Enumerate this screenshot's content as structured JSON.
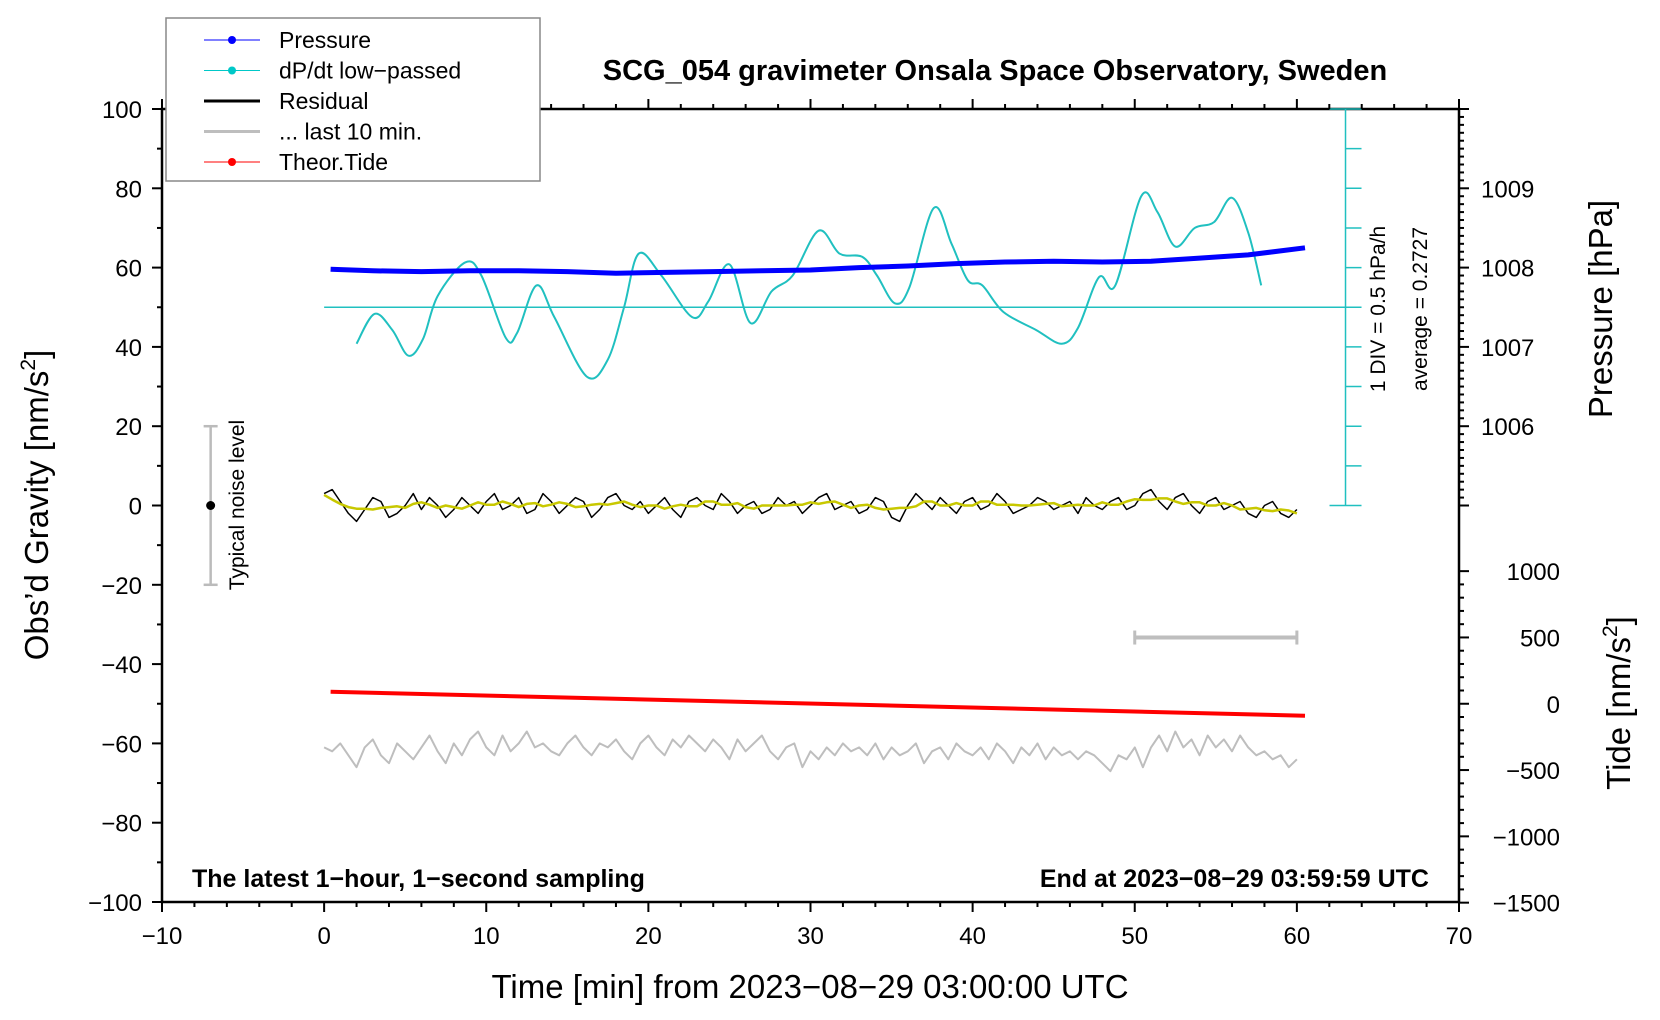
{
  "chart_data": {
    "type": "line",
    "title": "SCG_054 gravimeter Onsala Space Observatory, Sweden",
    "xlabel": "Time [min] from 2023−08−29 03:00:00 UTC",
    "ylabel": "Obs’d Gravity [nm/s²]",
    "ylabel_parts": {
      "main": "Obs’d Gravity [nm/s",
      "sup": "2",
      "end": "]"
    },
    "xlim": [
      -10,
      70
    ],
    "ylim": [
      -100,
      100
    ],
    "xticks": [
      -10,
      0,
      10,
      20,
      30,
      40,
      50,
      60,
      70
    ],
    "xtick_labels": [
      "−10",
      "0",
      "10",
      "20",
      "30",
      "40",
      "50",
      "60",
      "70"
    ],
    "yticks": [
      100,
      80,
      60,
      40,
      20,
      0,
      -20,
      -40,
      -60,
      -80,
      -100
    ],
    "ytick_labels": [
      "100",
      "80",
      "60",
      "40",
      "20",
      "0",
      "−20",
      "−40",
      "−60",
      "−80",
      "−100"
    ],
    "pressure_axis": {
      "label": "Pressure [hPa]",
      "ticks": [
        1009,
        1008,
        1007,
        1006
      ],
      "tick_labels": [
        "1009",
        "1008",
        "1007",
        "1006"
      ]
    },
    "tide_axis": {
      "label_parts": {
        "main": "Tide [nm/s",
        "sup": "2",
        "end": "]"
      },
      "ticks": [
        1000,
        500,
        0,
        -500,
        -1000,
        -1500
      ],
      "tick_labels": [
        "1000",
        "500",
        "0",
        "−500",
        "−1000",
        "−1500"
      ]
    },
    "dpdt_scale": {
      "div_label": "1 DIV = 0.5 hPa/h",
      "average_label": "average = 0.2727",
      "average": 0.2727,
      "div": 0.5
    },
    "annotations": {
      "left_bottom": "The latest 1−hour, 1−second sampling",
      "right_bottom": "End at 2023−08−29 03:59:59 UTC",
      "noise": "Typical noise level",
      "noise_range": [
        -20,
        20
      ]
    },
    "legend": {
      "position": "top-left",
      "entries": [
        {
          "label": "Pressure",
          "color": "#0000ff",
          "marker": true
        },
        {
          "label": "dP/dt low−passed",
          "color": "#00c8c8",
          "marker": true
        },
        {
          "label": "Residual",
          "color": "#000000",
          "marker": false
        },
        {
          "label": "... last 10 min.",
          "color": "#bebebe",
          "marker": false
        },
        {
          "label": "Theor.Tide",
          "color": "#ff0000",
          "marker": true
        }
      ]
    },
    "colors": {
      "pressure": "#0000ff",
      "dpdt": "#20c0c0",
      "residual": "#000000",
      "smoothed": "#c8c800",
      "last10": "#bebebe",
      "tide": "#ff0000"
    },
    "last10_range_min": [
      50,
      60
    ],
    "series": {
      "pressure_hPa": {
        "x": [
          0.4,
          3,
          6,
          9,
          12,
          15,
          18,
          21,
          24,
          27,
          30,
          33,
          36,
          39,
          42,
          45,
          48,
          51,
          54,
          57,
          60.5
        ],
        "y": [
          1007.98,
          1007.96,
          1007.95,
          1007.96,
          1007.96,
          1007.95,
          1007.93,
          1007.94,
          1007.95,
          1007.96,
          1007.97,
          1008.0,
          1008.02,
          1008.05,
          1008.07,
          1008.08,
          1008.07,
          1008.08,
          1008.12,
          1008.16,
          1008.25
        ]
      },
      "dpdt_hPa_per_h": {
        "x": [
          2.0,
          3.1,
          4.2,
          5.2,
          6.1,
          7.0,
          8.7,
          9.7,
          11.2,
          11.9,
          13.1,
          14.2,
          16.2,
          17.5,
          18.5,
          19.4,
          20.8,
          22.7,
          23.7,
          25.0,
          26.3,
          27.6,
          28.9,
          30.5,
          31.8,
          33.2,
          34.1,
          35.2,
          36.1,
          37.6,
          38.7,
          39.7,
          40.6,
          41.9,
          43.9,
          45.5,
          46.5,
          47.8,
          48.8,
          50.4,
          51.4,
          52.5,
          53.7,
          54.9,
          56.0,
          57.0,
          57.8
        ],
        "y": [
          -0.187,
          0.189,
          -0.013,
          -0.338,
          -0.127,
          0.413,
          0.838,
          0.673,
          -0.112,
          -0.052,
          0.548,
          0.148,
          -0.602,
          -0.387,
          0.273,
          0.948,
          0.673,
          0.148,
          0.348,
          0.813,
          0.073,
          0.473,
          0.673,
          1.238,
          0.948,
          0.908,
          0.673,
          0.323,
          0.523,
          1.523,
          1.073,
          0.613,
          0.548,
          0.213,
          -0.012,
          -0.187,
          0.013,
          0.653,
          0.548,
          1.673,
          1.473,
          1.038,
          1.273,
          1.348,
          1.653,
          1.213,
          0.548
        ]
      },
      "residual": {
        "x_start": 0,
        "x_step": 0.5,
        "y": [
          3,
          4,
          1,
          -2,
          -4,
          -1,
          2,
          1,
          -3,
          -2,
          0,
          3,
          -1,
          2,
          0,
          -3,
          -1,
          2,
          0,
          -2,
          1,
          3,
          -1,
          0,
          2,
          -2,
          -1,
          3,
          1,
          -2,
          0,
          2,
          1,
          -3,
          -1,
          2,
          3,
          0,
          -1,
          1,
          -2,
          0,
          2,
          -1,
          -3,
          1,
          2,
          0,
          -1,
          3,
          1,
          -2,
          0,
          1,
          -2,
          -1,
          2,
          0,
          1,
          -2,
          0,
          2,
          3,
          -1,
          0,
          1,
          -2,
          -1,
          2,
          1,
          -3,
          -4,
          0,
          3,
          1,
          -1,
          2,
          0,
          -2,
          1,
          2,
          -1,
          0,
          3,
          1,
          -2,
          -1,
          0,
          2,
          1,
          -1,
          0,
          1,
          -2,
          2,
          0,
          -1,
          1,
          2,
          -1,
          0,
          3,
          4,
          1,
          -1,
          2,
          3,
          0,
          -2,
          1,
          2,
          -1,
          0,
          1,
          -2,
          -3,
          0,
          1,
          -2,
          -3,
          -1
        ],
        "range": [
          -7,
          7
        ]
      },
      "last_10_min": {
        "x_start": 0,
        "x_step": 0.5,
        "y": [
          -61,
          -62,
          -60,
          -63,
          -66,
          -61,
          -59,
          -63,
          -65,
          -60,
          -62,
          -64,
          -61,
          -58,
          -62,
          -65,
          -60,
          -63,
          -59,
          -57,
          -61,
          -63,
          -58,
          -62,
          -60,
          -57,
          -61,
          -60,
          -62,
          -63,
          -60,
          -58,
          -61,
          -63,
          -60,
          -61,
          -59,
          -62,
          -64,
          -60,
          -58,
          -61,
          -63,
          -59,
          -61,
          -58,
          -60,
          -62,
          -59,
          -61,
          -64,
          -59,
          -62,
          -60,
          -58,
          -62,
          -64,
          -61,
          -60,
          -66,
          -62,
          -64,
          -61,
          -63,
          -60,
          -62,
          -61,
          -63,
          -60,
          -64,
          -61,
          -63,
          -62,
          -60,
          -65,
          -62,
          -61,
          -64,
          -60,
          -62,
          -63,
          -61,
          -64,
          -60,
          -62,
          -65,
          -61,
          -63,
          -60,
          -64,
          -61,
          -63,
          -62,
          -64,
          -62,
          -63,
          -65,
          -67,
          -63,
          -64,
          -61,
          -66,
          -61,
          -58,
          -62,
          -57,
          -61,
          -59,
          -63,
          -58,
          -61,
          -59,
          -62,
          -58,
          -61,
          -63,
          -62,
          -64,
          -63,
          -66,
          -64
        ]
      },
      "theor_tide_nm_s2": {
        "x": [
          0.4,
          60.5
        ],
        "y": [
          90,
          -90
        ]
      }
    }
  }
}
